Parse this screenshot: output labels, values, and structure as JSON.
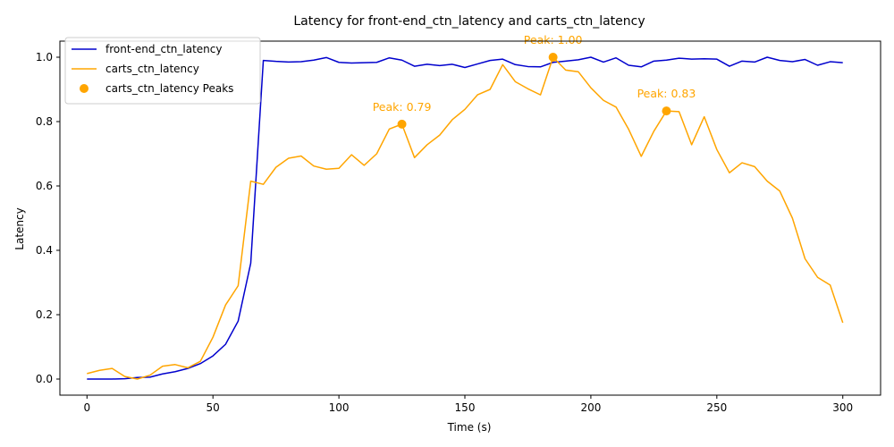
{
  "chart_data": {
    "type": "line",
    "title": "Latency for front-end_ctn_latency and carts_ctn_latency",
    "xlabel": "Time (s)",
    "ylabel": "Latency",
    "xlim": [
      -10.75,
      315
    ],
    "ylim": [
      -0.05,
      1.05
    ],
    "xticks": [
      0,
      50,
      100,
      150,
      200,
      250,
      300
    ],
    "xtick_labels": [
      "0",
      "50",
      "100",
      "150",
      "200",
      "250",
      "300"
    ],
    "yticks": [
      0.0,
      0.2,
      0.4,
      0.6,
      0.8,
      1.0
    ],
    "ytick_labels": [
      "0.0",
      "0.2",
      "0.4",
      "0.6",
      "0.8",
      "1.0"
    ],
    "grid": false,
    "legend_position": "top-left",
    "x": [
      0,
      5,
      10,
      15,
      20,
      25,
      30,
      35,
      40,
      45,
      50,
      55,
      60,
      65,
      70,
      75,
      80,
      85,
      90,
      95,
      100,
      105,
      110,
      115,
      120,
      125,
      130,
      135,
      140,
      145,
      150,
      155,
      160,
      165,
      170,
      175,
      180,
      185,
      190,
      195,
      200,
      205,
      210,
      215,
      220,
      225,
      230,
      235,
      240,
      245,
      250,
      255,
      260,
      265,
      270,
      275,
      280,
      285,
      290,
      295,
      300
    ],
    "series": [
      {
        "name": "front-end_ctn_latency",
        "color": "#0000cd",
        "values": [
          0.0,
          0.0,
          0.0,
          0.001,
          0.005,
          0.006,
          0.016,
          0.023,
          0.033,
          0.048,
          0.072,
          0.108,
          0.18,
          0.36,
          0.99,
          0.987,
          0.985,
          0.986,
          0.991,
          0.999,
          0.984,
          0.982,
          0.983,
          0.984,
          0.998,
          0.991,
          0.972,
          0.978,
          0.974,
          0.978,
          0.968,
          0.979,
          0.99,
          0.994,
          0.977,
          0.971,
          0.97,
          0.984,
          0.988,
          0.992,
          1.0,
          0.985,
          0.998,
          0.975,
          0.97,
          0.988,
          0.991,
          0.997,
          0.994,
          0.995,
          0.994,
          0.972,
          0.988,
          0.985,
          1.0,
          0.99,
          0.986,
          0.993,
          0.975,
          0.986,
          0.983
        ]
      },
      {
        "name": "carts_ctn_latency",
        "color": "#ffa500",
        "values": [
          0.017,
          0.027,
          0.033,
          0.008,
          0.0,
          0.012,
          0.04,
          0.045,
          0.035,
          0.055,
          0.13,
          0.23,
          0.29,
          0.615,
          0.605,
          0.658,
          0.686,
          0.693,
          0.662,
          0.652,
          0.655,
          0.697,
          0.664,
          0.7,
          0.777,
          0.792,
          0.688,
          0.728,
          0.758,
          0.806,
          0.838,
          0.883,
          0.9,
          0.977,
          0.924,
          0.902,
          0.883,
          1.0,
          0.96,
          0.955,
          0.905,
          0.866,
          0.845,
          0.776,
          0.692,
          0.77,
          0.833,
          0.831,
          0.728,
          0.815,
          0.713,
          0.641,
          0.672,
          0.66,
          0.615,
          0.584,
          0.5,
          0.374,
          0.316,
          0.292,
          0.175
        ]
      }
    ],
    "peaks": {
      "name": "carts_ctn_latency Peaks",
      "color": "#ffa500",
      "points": [
        {
          "x": 125,
          "y": 0.792,
          "label": "Peak: 0.79"
        },
        {
          "x": 185,
          "y": 1.0,
          "label": "Peak: 1.00"
        },
        {
          "x": 230,
          "y": 0.833,
          "label": "Peak: 0.83"
        }
      ]
    }
  }
}
